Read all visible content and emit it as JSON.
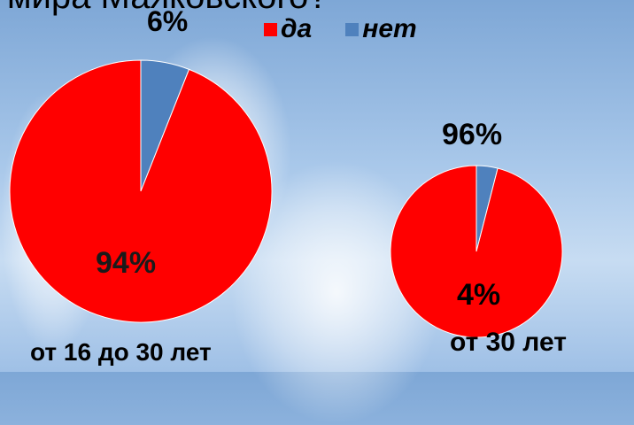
{
  "title_fragment": "мира Маяковского?",
  "legend": [
    {
      "label": "да",
      "color": "#ff0000"
    },
    {
      "label": "нет",
      "color": "#4f81bd"
    }
  ],
  "chart_data": [
    {
      "type": "pie",
      "title": "от 16 до 30 лет",
      "slices": [
        {
          "label": "да",
          "value": 94,
          "color": "#ff0000",
          "text": "94%"
        },
        {
          "label": "нет",
          "value": 6,
          "color": "#4f81bd",
          "text": "6%"
        }
      ]
    },
    {
      "type": "pie",
      "title": "от 30 лет",
      "slices": [
        {
          "label": "да",
          "value": 96,
          "color": "#ff0000",
          "text": "96%"
        },
        {
          "label": "нет",
          "value": 4,
          "color": "#4f81bd",
          "text": "4%"
        }
      ]
    }
  ]
}
